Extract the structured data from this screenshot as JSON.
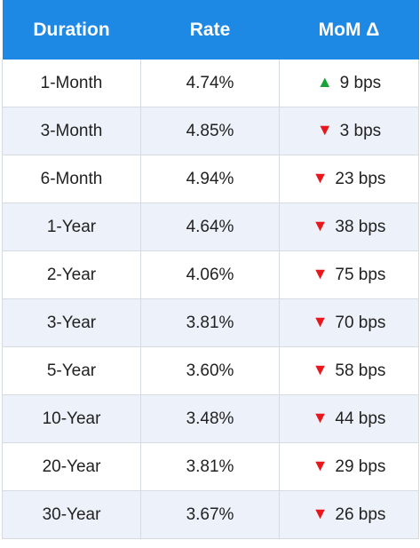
{
  "headers": [
    "Duration",
    "Rate",
    "MoM Δ"
  ],
  "colors": {
    "header_bg": "#1e88e5",
    "header_text": "#ffffff",
    "row_alt_bg": "#edf2fa",
    "up_arrow": "#18a33a",
    "down_arrow": "#e8161d"
  },
  "rows": [
    {
      "duration": "1-Month",
      "rate": "4.74%",
      "direction": "up",
      "arrow": "▲",
      "change": "9 bps"
    },
    {
      "duration": "3-Month",
      "rate": "4.85%",
      "direction": "down",
      "arrow": "▼",
      "change": "3 bps"
    },
    {
      "duration": "6-Month",
      "rate": "4.94%",
      "direction": "down",
      "arrow": "▼",
      "change": "23 bps"
    },
    {
      "duration": "1-Year",
      "rate": "4.64%",
      "direction": "down",
      "arrow": "▼",
      "change": "38 bps"
    },
    {
      "duration": "2-Year",
      "rate": "4.06%",
      "direction": "down",
      "arrow": "▼",
      "change": "75 bps"
    },
    {
      "duration": "3-Year",
      "rate": "3.81%",
      "direction": "down",
      "arrow": "▼",
      "change": "70 bps"
    },
    {
      "duration": "5-Year",
      "rate": "3.60%",
      "direction": "down",
      "arrow": "▼",
      "change": "58 bps"
    },
    {
      "duration": "10-Year",
      "rate": "3.48%",
      "direction": "down",
      "arrow": "▼",
      "change": "44 bps"
    },
    {
      "duration": "20-Year",
      "rate": "3.81%",
      "direction": "down",
      "arrow": "▼",
      "change": "29 bps"
    },
    {
      "duration": "30-Year",
      "rate": "3.67%",
      "direction": "down",
      "arrow": "▼",
      "change": "26 bps"
    }
  ]
}
